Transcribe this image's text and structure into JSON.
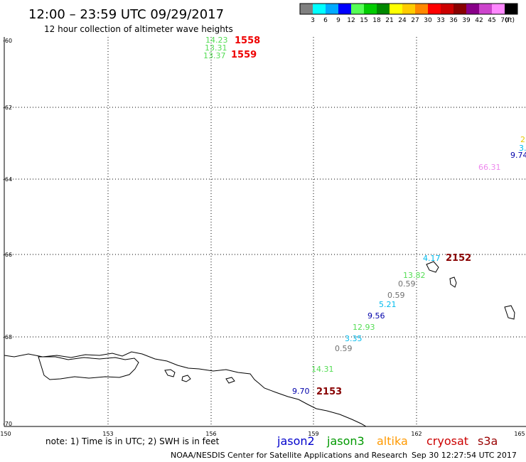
{
  "title": "12:00 – 23:59 UTC 09/29/2017",
  "subtitle": "12 hour collection of altimeter wave heights",
  "colorbar": {
    "colors": [
      "#808080",
      "#00ffff",
      "#00aaff",
      "#0000ff",
      "#55ff55",
      "#00cc00",
      "#008800",
      "#ffff00",
      "#ffcc00",
      "#ff8800",
      "#ff0000",
      "#cc0000",
      "#880000",
      "#880088",
      "#cc44cc",
      "#ff88ff",
      "#000000"
    ],
    "labels": [
      "3",
      "6",
      "9",
      "12",
      "15",
      "18",
      "21",
      "24",
      "27",
      "30",
      "33",
      "36",
      "39",
      "42",
      "45",
      "70"
    ],
    "unit": "(ft)"
  },
  "axes": {
    "lon_labels": [
      "150",
      "153",
      "156",
      "159",
      "162",
      "165"
    ],
    "lat_labels": [
      "-60",
      "-62",
      "-64",
      "-66",
      "-68",
      "-70"
    ]
  },
  "observations": [
    {
      "text": "14.23",
      "color": "#55dd55"
    },
    {
      "text": "13.31",
      "color": "#55dd55"
    },
    {
      "text": "13.37",
      "color": "#55dd55"
    },
    {
      "text": "2",
      "color": "#e6c800"
    },
    {
      "text": "3.",
      "color": "#00bbee"
    },
    {
      "text": "9.74",
      "color": "#0000aa"
    },
    {
      "text": "66.31",
      "color": "#ee88ee"
    },
    {
      "text": "4.17",
      "color": "#00bbee"
    },
    {
      "text": "13.82",
      "color": "#55dd55"
    },
    {
      "text": "0.59",
      "color": "#707070"
    },
    {
      "text": "0.59",
      "color": "#707070"
    },
    {
      "text": "5.21",
      "color": "#00bbee"
    },
    {
      "text": "9.56",
      "color": "#0000aa"
    },
    {
      "text": "12.93",
      "color": "#55dd55"
    },
    {
      "text": "3.35",
      "color": "#00bbee"
    },
    {
      "text": "0.59",
      "color": "#707070"
    },
    {
      "text": "14.31",
      "color": "#55dd55"
    },
    {
      "text": "9.70",
      "color": "#0000aa"
    }
  ],
  "time_stamps": [
    {
      "text": "1558",
      "color": "#ee0000"
    },
    {
      "text": "1559",
      "color": "#ee0000"
    },
    {
      "text": "2152",
      "color": "#880000"
    },
    {
      "text": "2153",
      "color": "#880000"
    }
  ],
  "footer": {
    "note": "note: 1) Time is in UTC; 2) SWH is in feet",
    "satellites": [
      {
        "name": "jason2",
        "color": "#0000cc"
      },
      {
        "name": "jason3",
        "color": "#009900"
      },
      {
        "name": "altika",
        "color": "#ff9900"
      },
      {
        "name": "cryosat",
        "color": "#cc0000"
      },
      {
        "name": "s3a",
        "color": "#990000"
      }
    ],
    "credit": "NOAA/NESDIS Center for Satellite Applications and Research",
    "timestamp": "Sep 30 12:27:54 UTC 2017"
  }
}
